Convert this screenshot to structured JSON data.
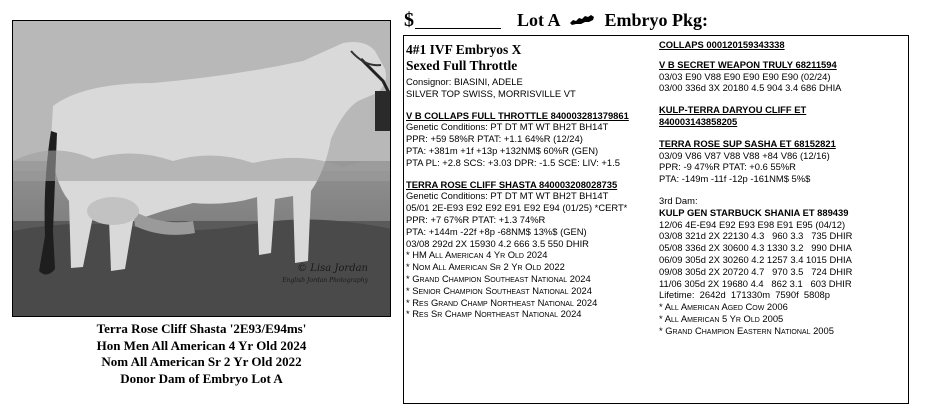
{
  "header": {
    "dollar": "$",
    "lot": "Lot A",
    "state_icon": "kentucky-state-icon",
    "embryo_pkg": "Embryo Pkg:"
  },
  "photo": {
    "signature": "© Lisa Jordan",
    "signature_sub": "English Jordan Photography"
  },
  "caption": [
    "Terra Rose Cliff Shasta   '2E93/E94ms'",
    "Hon Men All American 4 Yr Old 2024",
    "Nom All American Sr 2 Yr Old 2022",
    "Donor Dam of Embryo Lot A"
  ],
  "left": {
    "title1": "4#1 IVF Embryos X",
    "title2": "Sexed Full Throttle",
    "consignor": "Consignor:  BIASINI, ADELE",
    "farm": "SILVER TOP SWISS,  MORRISVILLE VT",
    "sire": {
      "name": "V B COLLAPS FULL THROTTLE 840003281379861",
      "lines": [
        "Genetic Conditions: PT DT MT WT BH2T BH14T",
        "PPR: +59 58%R PTAT: +1.1 64%R (12/24)",
        "PTA: +381m +1f +13p +132NM$ 60%R (GEN)",
        "PTA PL: +2.8 SCS: +3.03 DPR: -1.5 SCE:    LIV: +1.5"
      ]
    },
    "dam": {
      "name": "TERRA ROSE CLIFF SHASTA  840003208028735",
      "lines": [
        "Genetic Conditions: PT DT MT WT BH2T BH14T",
        "05/01 2E-E93 E92 E92 E91 E92 E94 (01/25) *CERT*",
        "PPR: +7 67%R PTAT: +1.3 74%R",
        "PTA: +144m -22f +8p -68NM$ 13%$ (GEN)",
        "03/08 292d 2X 15930 4.2 666 3.5 550 DHIR"
      ],
      "honors": [
        "* HM All American 4 Yr Old 2024",
        "* Nom All American Sr 2 Yr Old 2022",
        "* Grand Champion Southeast National 2024",
        "* Senior Champion Southeast National 2024",
        "* Res Grand Champ Northeast National 2024",
        "* Res Sr Champ Northeast National 2024"
      ]
    }
  },
  "right": {
    "sire_of_dam": "COLLAPS 000120159343338",
    "ss": {
      "name": "V B SECRET WEAPON TRULY  68211594",
      "lines": [
        "03/03 E90 V88 E90 E90 E90 E90 (02/24)",
        "03/00 336d 3X 20180 4.5 904 3.4 686 DHIA"
      ]
    },
    "mgs": {
      "name1": "KULP-TERRA DARYOU CLIFF ET",
      "name2": "840003143858205"
    },
    "gd": {
      "name": "TERRA ROSE SUP SASHA ET  68152821",
      "lines": [
        "03/09 V86 V87 V88 V88 +84 V86 (12/16)",
        "PPR: -9 47%R PTAT: +0.6 55%R",
        "PTA: -149m -11f -12p -161NM$ 5%$"
      ]
    },
    "third_dam_label": "3rd Dam:",
    "third_dam": {
      "name": "KULP GEN STARBUCK SHANIA ET  889439",
      "lines": [
        "12/06 4E-E94 E92 E93 E98 E91 E95 (04/12)",
        "03/08 321d 2X 22130 4.3   960 3.3   735 DHIR",
        "05/08 336d 2X 30600 4.3 1330 3.2   990 DHIA",
        "06/09 305d 2X 30260 4.2 1257 3.4 1015 DHIA",
        "09/08 305d 2X 20720 4.7   970 3.5   724 DHIR",
        "11/06 305d 2X 19680 4.4   862 3.1   603 DHIR",
        "Lifetime:  2642d  171330m  7590f  5808p"
      ],
      "honors": [
        "* All American Aged Cow 2006",
        "* All American 5 Yr Old 2005",
        "* Grand Champion Eastern National 2005"
      ]
    }
  }
}
